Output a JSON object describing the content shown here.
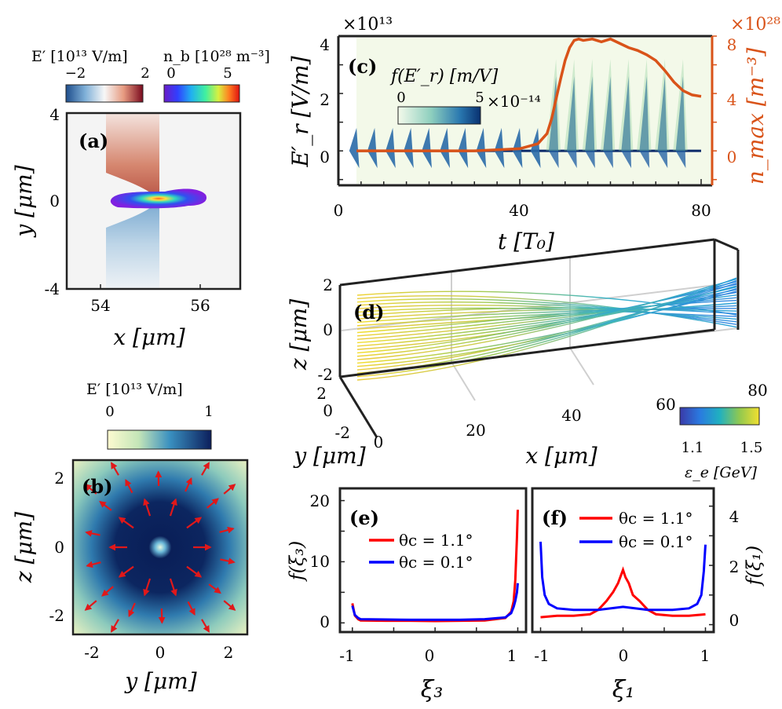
{
  "chart_data": [
    {
      "panel": "(a)",
      "type": "heatmap",
      "xlabel": "x [μm]",
      "ylabel": "y [μm]",
      "xticks": [
        "54",
        "56"
      ],
      "yticks": [
        "4",
        "0",
        "-4"
      ],
      "xlim": [
        53.2,
        56.8
      ],
      "ylim": [
        -4,
        4
      ],
      "colorbars": [
        {
          "label": "E′ [10¹³ V/m]",
          "ticks": [
            "−2",
            "2"
          ],
          "range": [
            -2,
            2
          ]
        },
        {
          "label": "n_b [10²⁸ m⁻³]",
          "ticks": [
            "0",
            "5"
          ],
          "range": [
            0,
            5
          ]
        }
      ]
    },
    {
      "panel": "(b)",
      "type": "heatmap",
      "xlabel": "y [μm]",
      "ylabel": "z [μm]",
      "xticks": [
        "-2",
        "0",
        "2"
      ],
      "yticks": [
        "2",
        "0",
        "-2"
      ],
      "xlim": [
        -2.5,
        2.5
      ],
      "ylim": [
        -2.5,
        2.5
      ],
      "colorbar": {
        "label": "E′ [10¹³ V/m]",
        "ticks": [
          "0",
          "1"
        ],
        "range": [
          0,
          1
        ]
      }
    },
    {
      "panel": "(c)",
      "type": "line",
      "xlabel": "t [T₀]",
      "ylabel_left": "E′_r [V/m]",
      "ylabel_right": "n_max [m⁻³]",
      "left_multiplier": "×10¹³",
      "right_multiplier": "×10²⁸",
      "xticks": [
        "0",
        "40",
        "80"
      ],
      "yticks_left": [
        "4",
        "2",
        "0"
      ],
      "yticks_right": [
        "8",
        "4",
        "0"
      ],
      "xlim": [
        0,
        80
      ],
      "ylim_left": [
        -1.2,
        4
      ],
      "ylim_right": [
        -2.4,
        8
      ],
      "colorbar": {
        "label": "f(E′_r) [m/V]",
        "ticks": [
          "0",
          "5"
        ],
        "multiplier": "×10⁻¹⁴"
      },
      "series": [
        {
          "name": "n_max",
          "color": "#d95319",
          "x": [
            4,
            10,
            20,
            30,
            40,
            44,
            46,
            47,
            48,
            49,
            50,
            51,
            52,
            53,
            54,
            56,
            58,
            60,
            62,
            64,
            66,
            68,
            70,
            72,
            74,
            76,
            78,
            80
          ],
          "y": [
            0,
            0,
            0,
            0,
            0.15,
            0.5,
            1.2,
            2.2,
            3.6,
            5.0,
            6.3,
            7.2,
            7.7,
            7.8,
            7.7,
            7.8,
            7.6,
            7.8,
            7.5,
            7.2,
            7.0,
            6.7,
            6.3,
            5.6,
            4.8,
            4.2,
            3.9,
            3.8
          ]
        }
      ]
    },
    {
      "panel": "(d)",
      "type": "line",
      "xlabel": "x [μm]",
      "ylabel": "y [μm]",
      "zlabel": "z [μm]",
      "xticks": [
        "0",
        "20",
        "40",
        "60",
        "80"
      ],
      "yticks": [
        "-2",
        "0",
        "2"
      ],
      "zticks": [
        "2",
        "0",
        "-2"
      ],
      "colorbar": {
        "label": "ε_e [GeV]",
        "ticks": [
          "1.1",
          "1.5"
        ],
        "range": [
          1.0,
          1.55
        ]
      }
    },
    {
      "panel": "(e)",
      "type": "line",
      "xlabel": "ξ₃",
      "ylabel": "f(ξ₃)",
      "xticks": [
        "-1",
        "0",
        "1"
      ],
      "yticks": [
        "20",
        "10",
        "0"
      ],
      "xlim": [
        -1.15,
        1.1
      ],
      "ylim": [
        -1.5,
        22
      ],
      "series": [
        {
          "name": "θc = 1.1°",
          "color": "#ff0000",
          "x": [
            -1.0,
            -0.97,
            -0.93,
            -0.9,
            -0.6,
            -0.3,
            0.0,
            0.3,
            0.6,
            0.85,
            0.92,
            0.95,
            0.97,
            0.99,
            1.0
          ],
          "y": [
            3.2,
            1.2,
            0.6,
            0.4,
            0.35,
            0.35,
            0.3,
            0.35,
            0.4,
            0.8,
            1.8,
            3.5,
            7.0,
            14.0,
            18.5
          ]
        },
        {
          "name": "θc = 0.1°",
          "color": "#0000ff",
          "x": [
            -1.0,
            -0.97,
            -0.93,
            -0.9,
            -0.6,
            -0.3,
            0.0,
            0.3,
            0.6,
            0.85,
            0.92,
            0.95,
            0.97,
            0.99,
            1.0
          ],
          "y": [
            2.8,
            1.3,
            0.8,
            0.6,
            0.55,
            0.5,
            0.5,
            0.5,
            0.6,
            0.9,
            1.6,
            2.6,
            3.6,
            5.0,
            6.5
          ]
        }
      ]
    },
    {
      "panel": "(f)",
      "type": "line",
      "xlabel": "ξ₁",
      "ylabel": "f(ξ₁)",
      "xticks": [
        "-1",
        "0",
        "1"
      ],
      "yticks": [
        "4",
        "2",
        "0"
      ],
      "xlim": [
        -1.1,
        1.1
      ],
      "ylim": [
        -0.25,
        4.6
      ],
      "series": [
        {
          "name": "θc = 1.1°",
          "color": "#ff0000",
          "x": [
            -1.0,
            -0.8,
            -0.6,
            -0.4,
            -0.3,
            -0.2,
            -0.12,
            -0.06,
            -0.02,
            0.0,
            0.03,
            0.07,
            0.12,
            0.2,
            0.3,
            0.4,
            0.6,
            0.8,
            1.0
          ],
          "y": [
            0.25,
            0.3,
            0.3,
            0.35,
            0.5,
            0.8,
            1.1,
            1.4,
            1.7,
            1.85,
            1.6,
            1.4,
            1.0,
            0.8,
            0.5,
            0.35,
            0.3,
            0.3,
            0.35
          ]
        },
        {
          "name": "θc = 0.1°",
          "color": "#0000ff",
          "x": [
            -1.0,
            -0.98,
            -0.95,
            -0.9,
            -0.8,
            -0.6,
            -0.3,
            0.0,
            0.3,
            0.6,
            0.8,
            0.9,
            0.95,
            0.98,
            1.0
          ],
          "y": [
            2.8,
            1.6,
            1.0,
            0.7,
            0.55,
            0.5,
            0.5,
            0.6,
            0.5,
            0.5,
            0.55,
            0.7,
            1.0,
            1.8,
            2.7
          ]
        }
      ]
    }
  ]
}
